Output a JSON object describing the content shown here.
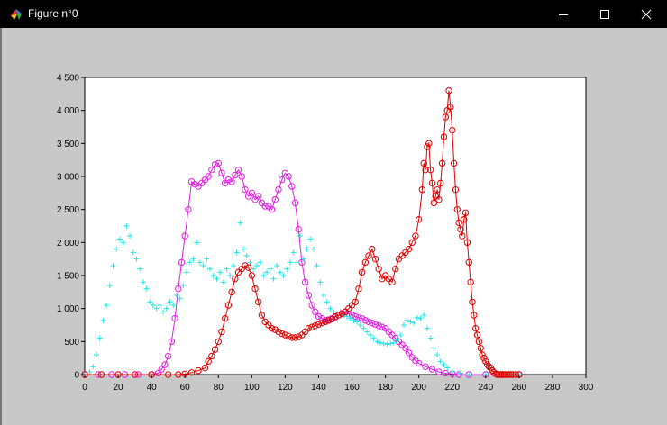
{
  "window": {
    "title": "Figure n°0",
    "controls": {
      "minimize_icon": "minimize-icon",
      "maximize_icon": "maximize-icon",
      "close_icon": "close-icon"
    }
  },
  "colors": {
    "titlebar_bg": "#000000",
    "client_bg": "#c8c8c8",
    "plot_bg": "#ffffff",
    "series_magenta": "#e020e0",
    "series_cyan": "#1ee6e6",
    "series_red": "#e00000"
  },
  "chart_data": {
    "type": "line",
    "title": "",
    "xlabel": "",
    "ylabel": "",
    "xlim": [
      0,
      300
    ],
    "ylim": [
      0,
      4500
    ],
    "grid": false,
    "x_ticks": [
      0,
      20,
      40,
      60,
      80,
      100,
      120,
      140,
      160,
      180,
      200,
      220,
      240,
      260,
      280,
      300
    ],
    "y_ticks": [
      0,
      500,
      1000,
      1500,
      2000,
      2500,
      3000,
      3500,
      4000,
      4500
    ],
    "y_tick_labels": [
      "0",
      "500",
      "1 000",
      "1 500",
      "2 000",
      "2 500",
      "3 000",
      "3 500",
      "4 000",
      "4 500"
    ],
    "series": [
      {
        "marker": "circle",
        "color": "#e020e0",
        "x": [
          0,
          8,
          16,
          24,
          32,
          40,
          44,
          46,
          48,
          50,
          52,
          54,
          56,
          58,
          60,
          62,
          64,
          66,
          68,
          70,
          72,
          74,
          76,
          78,
          80,
          82,
          84,
          86,
          88,
          90,
          92,
          94,
          96,
          98,
          100,
          102,
          104,
          106,
          108,
          110,
          112,
          114,
          116,
          118,
          120,
          122,
          124,
          126,
          128,
          130,
          132,
          134,
          136,
          138,
          140,
          142,
          144,
          146,
          148,
          150,
          152,
          154,
          156,
          158,
          160,
          162,
          164,
          166,
          168,
          170,
          172,
          174,
          176,
          178,
          180,
          182,
          184,
          186,
          188,
          190,
          192,
          194,
          196,
          198,
          200,
          204,
          208,
          212,
          216,
          220,
          224,
          230,
          240,
          250,
          260
        ],
        "y": [
          0,
          0,
          0,
          0,
          0,
          0,
          20,
          80,
          150,
          280,
          500,
          850,
          1300,
          1700,
          2100,
          2500,
          2920,
          2880,
          2850,
          2900,
          2950,
          3000,
          3100,
          3180,
          3200,
          3050,
          2900,
          2950,
          2920,
          3020,
          3100,
          3000,
          2800,
          2700,
          2750,
          2650,
          2700,
          2600,
          2550,
          2550,
          2500,
          2650,
          2800,
          2950,
          3050,
          3000,
          2850,
          2600,
          2200,
          1700,
          1400,
          1200,
          1050,
          950,
          880,
          850,
          820,
          830,
          850,
          870,
          900,
          930,
          950,
          920,
          900,
          880,
          860,
          850,
          820,
          800,
          780,
          760,
          740,
          720,
          700,
          650,
          600,
          550,
          500,
          450,
          400,
          330,
          260,
          210,
          170,
          120,
          80,
          40,
          20,
          10,
          0,
          0,
          0,
          0,
          0
        ]
      },
      {
        "marker": "plus",
        "color": "#1ee6e6",
        "x": [
          0,
          3,
          5,
          7,
          9,
          11,
          13,
          15,
          17,
          19,
          21,
          23,
          25,
          27,
          29,
          31,
          33,
          35,
          37,
          39,
          41,
          43,
          45,
          47,
          49,
          51,
          53,
          55,
          57,
          59,
          61,
          63,
          65,
          67,
          69,
          71,
          73,
          75,
          77,
          79,
          81,
          83,
          85,
          87,
          89,
          91,
          93,
          95,
          97,
          99,
          101,
          103,
          105,
          107,
          109,
          111,
          113,
          115,
          117,
          119,
          121,
          123,
          125,
          127,
          129,
          131,
          133,
          135,
          137,
          139,
          141,
          143,
          145,
          147,
          149,
          151,
          153,
          155,
          157,
          159,
          161,
          163,
          165,
          167,
          169,
          171,
          173,
          175,
          177,
          179,
          181,
          183,
          185,
          187,
          189,
          191,
          193,
          195,
          197,
          199,
          201,
          203,
          205,
          207,
          209,
          211,
          213,
          215,
          217,
          220,
          225,
          230,
          240,
          250,
          260
        ],
        "y": [
          0,
          40,
          120,
          300,
          550,
          820,
          1050,
          1350,
          1650,
          1900,
          2050,
          2000,
          2250,
          2100,
          1850,
          1750,
          1600,
          1400,
          1300,
          1100,
          1050,
          1000,
          1050,
          950,
          1000,
          1100,
          1050,
          1200,
          1150,
          1350,
          1550,
          1700,
          1750,
          2000,
          1700,
          1650,
          1750,
          1600,
          1500,
          1450,
          1550,
          1400,
          1600,
          1500,
          1650,
          1850,
          2300,
          1900,
          1800,
          1700,
          1600,
          1650,
          1700,
          1500,
          1550,
          1600,
          1450,
          1650,
          1550,
          1500,
          1600,
          1700,
          1850,
          1700,
          2100,
          1750,
          1900,
          2050,
          1900,
          1650,
          1400,
          1200,
          1100,
          1000,
          950,
          900,
          950,
          900,
          880,
          850,
          820,
          800,
          750,
          700,
          650,
          600,
          550,
          500,
          480,
          470,
          460,
          470,
          480,
          520,
          600,
          750,
          820,
          800,
          780,
          860,
          850,
          900,
          700,
          550,
          400,
          300,
          200,
          150,
          100,
          50,
          20,
          0,
          0,
          0,
          0
        ]
      },
      {
        "marker": "circle",
        "color": "#e00000",
        "x": [
          0,
          10,
          20,
          30,
          40,
          50,
          56,
          60,
          64,
          68,
          72,
          74,
          76,
          78,
          80,
          82,
          84,
          86,
          88,
          90,
          92,
          94,
          96,
          98,
          100,
          102,
          104,
          106,
          108,
          110,
          112,
          114,
          116,
          118,
          120,
          122,
          124,
          126,
          128,
          130,
          132,
          134,
          136,
          138,
          140,
          142,
          144,
          146,
          148,
          150,
          152,
          154,
          156,
          158,
          160,
          162,
          164,
          166,
          168,
          170,
          172,
          174,
          176,
          178,
          180,
          182,
          184,
          186,
          188,
          190,
          192,
          194,
          196,
          198,
          200,
          202,
          203,
          204,
          205,
          206,
          207,
          208,
          209,
          210,
          211,
          212,
          213,
          214,
          215,
          216,
          217,
          218,
          219,
          220,
          221,
          222,
          223,
          224,
          225,
          226,
          227,
          228,
          229,
          230,
          231,
          232,
          233,
          234,
          235,
          236,
          237,
          238,
          239,
          240,
          241,
          242,
          243,
          244,
          245,
          246,
          247,
          248,
          249,
          250,
          251,
          252,
          253,
          254,
          255,
          256,
          258,
          260
        ],
        "y": [
          0,
          0,
          0,
          0,
          0,
          0,
          0,
          10,
          30,
          60,
          100,
          200,
          280,
          380,
          500,
          650,
          850,
          1050,
          1250,
          1450,
          1550,
          1600,
          1650,
          1620,
          1500,
          1300,
          1100,
          900,
          800,
          750,
          700,
          680,
          650,
          620,
          600,
          580,
          560,
          560,
          570,
          600,
          650,
          700,
          720,
          740,
          760,
          780,
          800,
          820,
          840,
          880,
          900,
          920,
          950,
          1000,
          1050,
          1100,
          1300,
          1550,
          1700,
          1800,
          1900,
          1750,
          1600,
          1450,
          1500,
          1450,
          1400,
          1600,
          1750,
          1800,
          1850,
          1900,
          2000,
          2100,
          2350,
          2800,
          3200,
          3100,
          3450,
          3500,
          3100,
          2900,
          2600,
          2700,
          2800,
          2650,
          2900,
          3200,
          3600,
          3900,
          4000,
          4300,
          4050,
          3700,
          3200,
          2800,
          2500,
          2300,
          2200,
          2100,
          2350,
          2450,
          2000,
          1700,
          1400,
          1100,
          900,
          700,
          600,
          500,
          400,
          300,
          250,
          200,
          150,
          120,
          100,
          60,
          30,
          10,
          0,
          0,
          0,
          0,
          0,
          0,
          0,
          0,
          0,
          0,
          0,
          0
        ]
      }
    ]
  }
}
